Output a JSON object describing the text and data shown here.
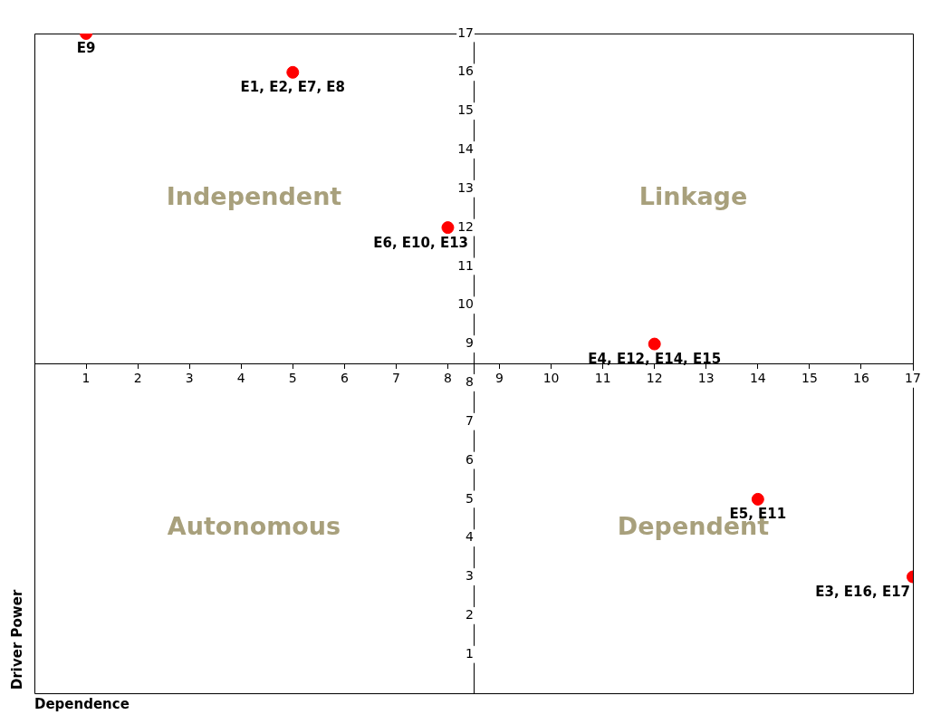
{
  "chart_data": {
    "type": "scatter",
    "xlabel": "Dependence",
    "ylabel": "Driver Power",
    "annotations": [
      "Independent",
      "Linkage",
      "Autonomous",
      "Dependent"
    ],
    "x": [
      1,
      5,
      8,
      12,
      14,
      17
    ],
    "values": [
      17,
      16,
      12,
      9,
      5,
      3
    ],
    "value_labels": [
      "E9",
      "E1, E2, E7, E8",
      "E6, E10, E13",
      "E4, E12, E14, E15",
      "E5, E11",
      "E3, E16, E17"
    ],
    "color": "#ff0000",
    "marker": "circle",
    "xlim": [
      0,
      17
    ],
    "ylim": [
      0,
      17
    ],
    "xticks": [
      1,
      2,
      3,
      4,
      5,
      6,
      7,
      8,
      9,
      10,
      11,
      12,
      13,
      14,
      15,
      16,
      17
    ],
    "yticks": [
      1,
      2,
      3,
      4,
      5,
      6,
      7,
      8,
      9,
      10,
      11,
      12,
      13,
      14,
      15,
      16,
      17
    ],
    "grid": false,
    "legend": false
  }
}
